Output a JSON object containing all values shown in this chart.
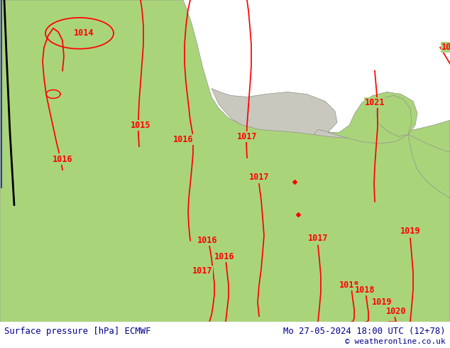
{
  "title_left": "Surface pressure [hPa] ECMWF",
  "title_right": "Mo 27-05-2024 18:00 UTC (12+78)",
  "copyright": "© weatheronline.co.uk",
  "bg_color": "#aad47a",
  "sea_color": "#c8c8be",
  "contour_color": "#ff0000",
  "border_color": "#909090",
  "text_color": "#00008b",
  "figsize": [
    6.34,
    4.9
  ],
  "dpi": 100
}
